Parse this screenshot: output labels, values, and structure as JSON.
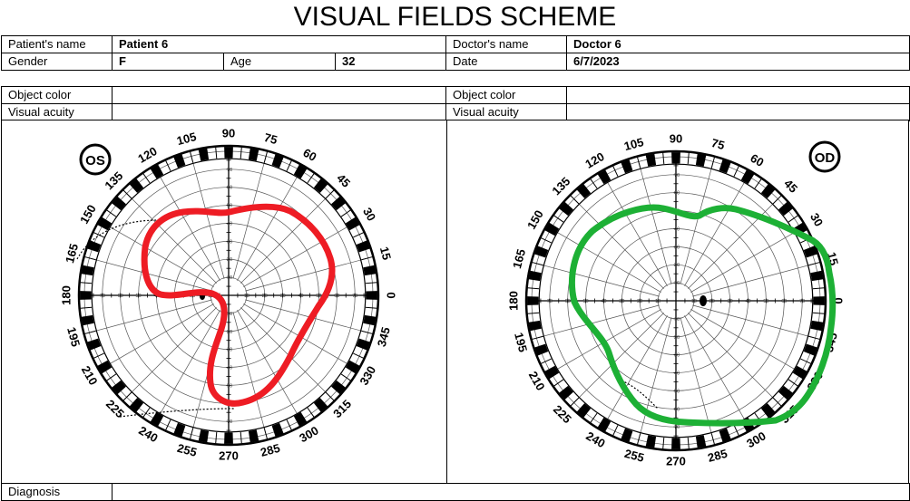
{
  "title": "VISUAL FIELDS SCHEME",
  "patient": {
    "name_label": "Patient's name",
    "name": "Patient 6",
    "gender_label": "Gender",
    "gender": "F",
    "age_label": "Age",
    "age": "32"
  },
  "doctor": {
    "name_label": "Doctor's name",
    "name": "Doctor 6",
    "date_label": "Date",
    "date": "6/7/2023"
  },
  "exam": {
    "left": {
      "object_color_label": "Object color",
      "object_color": "",
      "visual_acuity_label": "Visual acuity",
      "visual_acuity": ""
    },
    "right": {
      "object_color_label": "Object color",
      "object_color": "",
      "visual_acuity_label": "Visual acuity",
      "visual_acuity": ""
    }
  },
  "charts": {
    "angle_labels": [
      "0",
      "15",
      "30",
      "45",
      "60",
      "75",
      "90",
      "105",
      "120",
      "135",
      "150",
      "165",
      "180",
      "195",
      "210",
      "225",
      "240",
      "255",
      "270",
      "285",
      "300",
      "315",
      "330",
      "345"
    ],
    "radius_labels": [
      "10",
      "20",
      "30",
      "40",
      "50",
      "60",
      "70",
      "80"
    ],
    "left": {
      "eye_label": "OS",
      "field_color": "#ee1c24"
    },
    "right": {
      "eye_label": "OD",
      "field_color": "#1db035"
    }
  },
  "diagnosis": {
    "label": "Diagnosis",
    "value": ""
  }
}
